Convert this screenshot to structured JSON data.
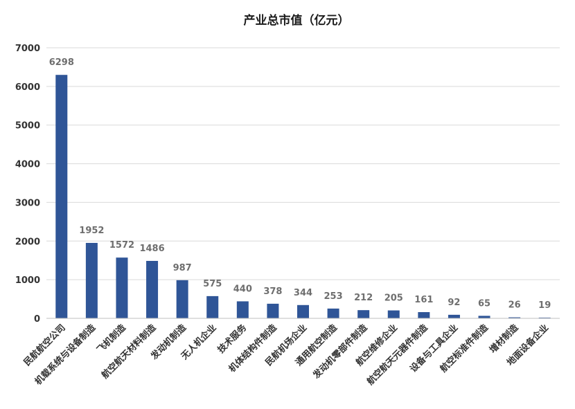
{
  "chart_data": {
    "type": "bar",
    "title": "产业总市值（亿元）",
    "xlabel": "",
    "ylabel": "",
    "ylim": [
      0,
      7000
    ],
    "yticks": [
      0,
      1000,
      2000,
      3000,
      4000,
      5000,
      6000,
      7000
    ],
    "grid": true,
    "legend": "none",
    "bar_color": "#2F5597",
    "categories": [
      "民航航空公司",
      "机载系统与设备制造",
      "飞机制造",
      "航空航天材料制造",
      "发动机制造",
      "无人机企业",
      "技术服务",
      "机体结构件制造",
      "民航机场企业",
      "通用航空制造",
      "发动机零部件制造",
      "航空维修企业",
      "航空航天元器件制造",
      "设备与工具企业",
      "航空标准件制造",
      "增材制造",
      "地面设备企业"
    ],
    "values": [
      6298,
      1952,
      1572,
      1486,
      987,
      575,
      440,
      378,
      344,
      253,
      212,
      205,
      161,
      92,
      65,
      26,
      19
    ]
  }
}
